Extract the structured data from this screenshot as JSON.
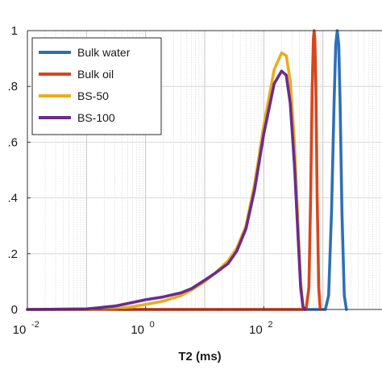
{
  "chart_data": {
    "type": "line",
    "title": "",
    "xlabel": "T2 (ms)",
    "ylabel": "",
    "x_scale": "log",
    "xlim": [
      0.01,
      10000
    ],
    "ylim": [
      0,
      1
    ],
    "grid": true,
    "legend_position": "top-left",
    "x_ticks": [
      {
        "value": 0.01,
        "base": "10",
        "exp": "-2"
      },
      {
        "value": 1,
        "base": "10",
        "exp": "0"
      },
      {
        "value": 100,
        "base": "10",
        "exp": "2"
      }
    ],
    "y_ticks": [
      {
        "value": 0,
        "label": "0"
      },
      {
        "value": 0.2,
        "label": ".2"
      },
      {
        "value": 0.4,
        "label": ".4"
      },
      {
        "value": 0.6,
        "label": ".6"
      },
      {
        "value": 0.8,
        "label": ".8"
      },
      {
        "value": 1,
        "label": "1"
      }
    ],
    "series": [
      {
        "name": "Bulk water",
        "color": "#2e6fb8",
        "points": [
          [
            0.01,
            0
          ],
          [
            1100,
            0
          ],
          [
            1250,
            0.05
          ],
          [
            1400,
            0.35
          ],
          [
            1550,
            0.75
          ],
          [
            1650,
            0.95
          ],
          [
            1750,
            1.0
          ],
          [
            1850,
            0.95
          ],
          [
            1950,
            0.75
          ],
          [
            2100,
            0.35
          ],
          [
            2300,
            0.05
          ],
          [
            2500,
            0
          ]
        ]
      },
      {
        "name": "Bulk oil",
        "color": "#d8461d",
        "points": [
          [
            0.01,
            0
          ],
          [
            520,
            0
          ],
          [
            580,
            0.08
          ],
          [
            620,
            0.4
          ],
          [
            660,
            0.8
          ],
          [
            690,
            0.97
          ],
          [
            710,
            1.0
          ],
          [
            730,
            0.97
          ],
          [
            760,
            0.8
          ],
          [
            800,
            0.4
          ],
          [
            850,
            0.08
          ],
          [
            900,
            0
          ]
        ]
      },
      {
        "name": "BS-50",
        "color": "#e9ad1d",
        "points": [
          [
            0.01,
            0
          ],
          [
            0.3,
            0.002
          ],
          [
            0.6,
            0.01
          ],
          [
            1,
            0.018
          ],
          [
            2,
            0.03
          ],
          [
            4,
            0.05
          ],
          [
            6,
            0.07
          ],
          [
            10,
            0.1
          ],
          [
            15,
            0.13
          ],
          [
            25,
            0.175
          ],
          [
            35,
            0.22
          ],
          [
            50,
            0.3
          ],
          [
            70,
            0.45
          ],
          [
            100,
            0.66
          ],
          [
            150,
            0.86
          ],
          [
            200,
            0.92
          ],
          [
            240,
            0.91
          ],
          [
            280,
            0.82
          ],
          [
            330,
            0.6
          ],
          [
            380,
            0.3
          ],
          [
            420,
            0.1
          ],
          [
            460,
            0.01
          ],
          [
            500,
            0
          ]
        ]
      },
      {
        "name": "BS-100",
        "color": "#6b2c8c",
        "points": [
          [
            0.01,
            0
          ],
          [
            0.1,
            0.002
          ],
          [
            0.3,
            0.012
          ],
          [
            0.6,
            0.025
          ],
          [
            1,
            0.035
          ],
          [
            2,
            0.045
          ],
          [
            4,
            0.06
          ],
          [
            6,
            0.075
          ],
          [
            10,
            0.105
          ],
          [
            15,
            0.13
          ],
          [
            25,
            0.165
          ],
          [
            35,
            0.21
          ],
          [
            50,
            0.29
          ],
          [
            70,
            0.43
          ],
          [
            100,
            0.63
          ],
          [
            150,
            0.81
          ],
          [
            200,
            0.855
          ],
          [
            240,
            0.84
          ],
          [
            280,
            0.74
          ],
          [
            330,
            0.52
          ],
          [
            380,
            0.26
          ],
          [
            420,
            0.08
          ],
          [
            460,
            0.01
          ],
          [
            500,
            0
          ]
        ]
      }
    ]
  }
}
